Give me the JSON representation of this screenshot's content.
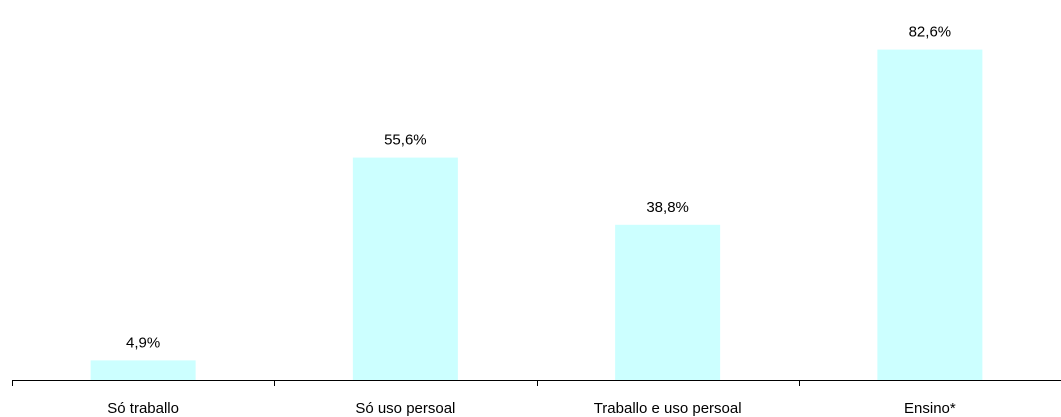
{
  "chart_data": {
    "type": "bar",
    "categories": [
      "Só traballo",
      "Só uso persoal",
      "Traballo e uso persoal",
      "Ensino*"
    ],
    "values": [
      4.9,
      55.6,
      38.8,
      82.6
    ],
    "value_labels": [
      "4,9%",
      "55,6%",
      "38,8%",
      "82,6%"
    ],
    "ylim": [
      0,
      90
    ],
    "grid": false,
    "legend": "none",
    "bar_color": "#ccffff",
    "axis_color": "#000000"
  }
}
